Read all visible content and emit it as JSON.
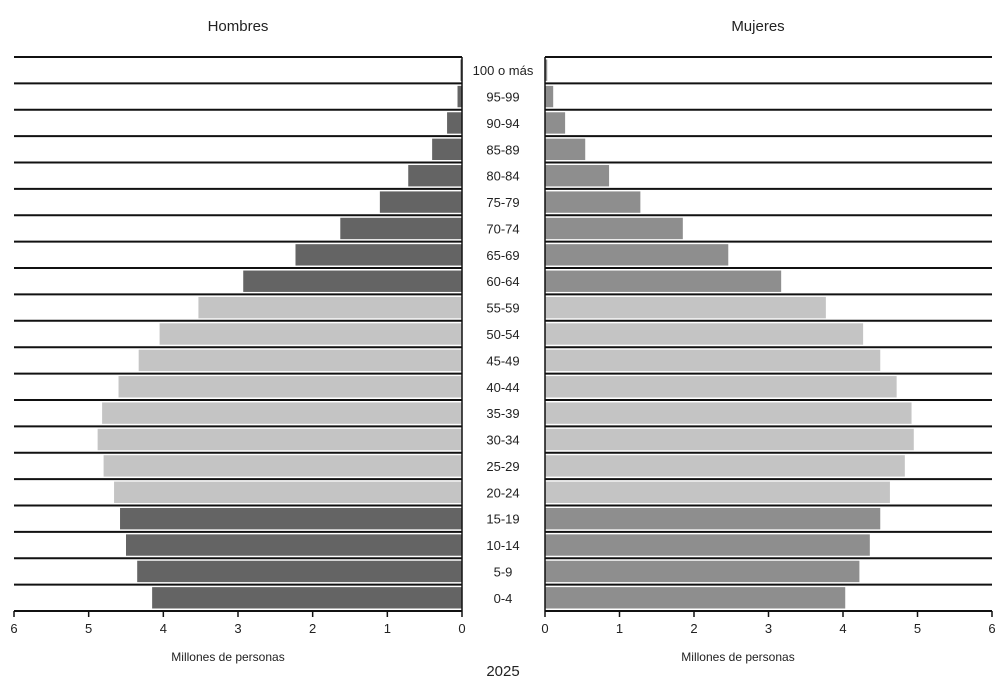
{
  "chart_data": {
    "type": "bar",
    "orientation": "horizontal",
    "layout": "population-pyramid",
    "categories": [
      "0-4",
      "5-9",
      "10-14",
      "15-19",
      "20-24",
      "25-29",
      "30-34",
      "35-39",
      "40-44",
      "45-49",
      "50-54",
      "55-59",
      "60-64",
      "65-69",
      "70-74",
      "75-79",
      "80-84",
      "85-89",
      "90-94",
      "95-99",
      "100 o más"
    ],
    "series": [
      {
        "name": "Hombres",
        "values": [
          4.15,
          4.35,
          4.5,
          4.58,
          4.66,
          4.8,
          4.88,
          4.82,
          4.6,
          4.33,
          4.05,
          3.53,
          2.93,
          2.23,
          1.63,
          1.1,
          0.72,
          0.4,
          0.2,
          0.06,
          0.02
        ]
      },
      {
        "name": "Mujeres",
        "values": [
          4.03,
          4.22,
          4.36,
          4.5,
          4.63,
          4.83,
          4.95,
          4.92,
          4.72,
          4.5,
          4.27,
          3.77,
          3.17,
          2.46,
          1.85,
          1.28,
          0.86,
          0.54,
          0.27,
          0.11,
          0.03
        ]
      }
    ],
    "band_colors": [
      "#646464",
      "#646464",
      "#646464",
      "#646464",
      "#c4c4c4",
      "#c4c4c4",
      "#c4c4c4",
      "#c4c4c4",
      "#c4c4c4",
      "#c4c4c4",
      "#c4c4c4",
      "#c4c4c4",
      "#646464",
      "#646464",
      "#646464",
      "#646464",
      "#646464",
      "#646464",
      "#646464",
      "#646464",
      "#646464"
    ],
    "band_colors_right": [
      "#8e8e8e",
      "#8e8e8e",
      "#8e8e8e",
      "#8e8e8e",
      "#c4c4c4",
      "#c4c4c4",
      "#c4c4c4",
      "#c4c4c4",
      "#c4c4c4",
      "#c4c4c4",
      "#c4c4c4",
      "#c4c4c4",
      "#8e8e8e",
      "#8e8e8e",
      "#8e8e8e",
      "#8e8e8e",
      "#8e8e8e",
      "#8e8e8e",
      "#8e8e8e",
      "#8e8e8e",
      "#8e8e8e"
    ],
    "left_title": "Hombres",
    "right_title": "Mujeres",
    "xlabel_left": "Millones de personas",
    "xlabel_right": "Millones de personas",
    "xlim": [
      0,
      6
    ],
    "xticks": [
      0,
      1,
      2,
      3,
      4,
      5,
      6
    ],
    "footer": "2025",
    "grid": "horizontal-lines"
  }
}
